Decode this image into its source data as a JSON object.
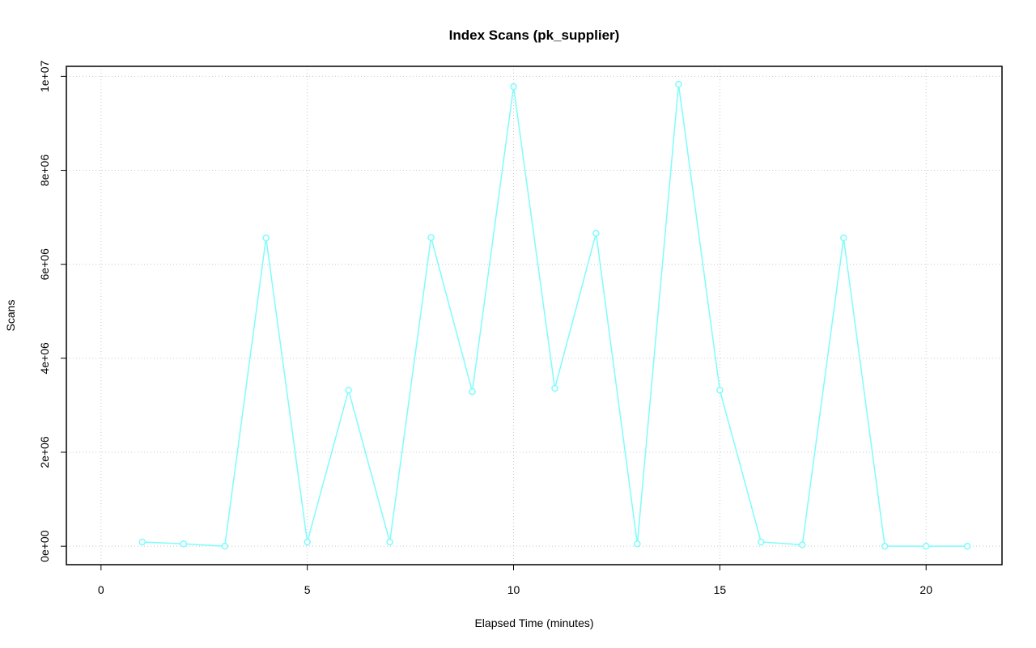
{
  "chart_data": {
    "type": "line",
    "title": "Index Scans (pk_supplier)",
    "x_label": "Elapsed Time (minutes)",
    "y_label": "Scans",
    "x": [
      1,
      2,
      3,
      4,
      5,
      6,
      7,
      8,
      9,
      10,
      11,
      12,
      13,
      14,
      15,
      16,
      17,
      18,
      19,
      20,
      21
    ],
    "series": [
      {
        "color": "#7ffcfc",
        "values": [
          90000,
          50000,
          0,
          6560000,
          90000,
          3320000,
          90000,
          6570000,
          3290000,
          9780000,
          3360000,
          6660000,
          50000,
          9830000,
          3320000,
          90000,
          30000,
          6560000,
          0,
          0,
          0
        ]
      }
    ],
    "xlim": [
      -0.84,
      21.84
    ],
    "xticks": [
      0,
      5,
      10,
      15,
      20
    ],
    "ylim": [
      -393000,
      10213000
    ],
    "yticks": [
      {
        "value": 0,
        "label": "0e+00"
      },
      {
        "value": 2000000,
        "label": "2e+06"
      },
      {
        "value": 4000000,
        "label": "4e+06"
      },
      {
        "value": 6000000,
        "label": "6e+06"
      },
      {
        "value": 8000000,
        "label": "8e+06"
      },
      {
        "value": 10000000,
        "label": "1e+07"
      }
    ],
    "grid": true
  }
}
